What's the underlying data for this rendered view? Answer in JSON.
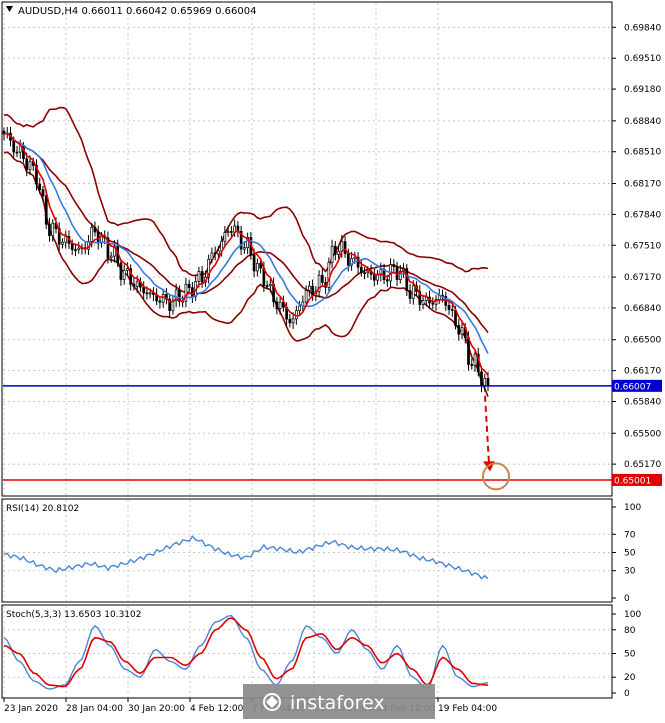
{
  "symbol": "AUDUSD,H4",
  "ohlc": "0.66011 0.66042 0.65969 0.66004",
  "rsi_label": "RSI(14) 20.8102",
  "stoch_label": "Stoch(5,3,3) 13.6503 10.3102",
  "watermark": "instaforex",
  "colors": {
    "background": "#ffffff",
    "grid": "#c8c8c8",
    "candle": "#000000",
    "ma_fast": "#e00000",
    "ma_slow": "#3a7be0",
    "band": "#8b0000",
    "level_blue": "#0000cc",
    "level_red": "#e00000",
    "indicator": "#4a86d8",
    "stoch_signal": "#e00000",
    "target_circle": "#c8864a",
    "watermark_bg": "#8a8a8a"
  },
  "chart_data": [
    {
      "type": "candlestick",
      "title": "AUDUSD,H4",
      "subtitle": "0.66011 0.66042 0.65969 0.66004",
      "x_ticks": [
        "23 Jan 2020",
        "28 Jan 04:00",
        "30 Jan 20:00",
        "4 Feb 12:00",
        "7 Feb 04:00",
        "11 Feb 20:00",
        "14 Feb 12:00",
        "19 Feb 04:00"
      ],
      "y_ticks": [
        0.6517,
        0.655,
        0.6584,
        0.6617,
        0.665,
        0.6684,
        0.6717,
        0.6751,
        0.6784,
        0.6817,
        0.6851,
        0.6884,
        0.6918,
        0.6951,
        0.6984
      ],
      "y_tick_labels": [
        "0.65170",
        "0.65500",
        "0.65840",
        "0.66170",
        "0.66500",
        "0.66840",
        "0.67170",
        "0.67510",
        "0.67840",
        "0.68170",
        "0.68510",
        "0.68840",
        "0.69180",
        "0.69510",
        "0.69840"
      ],
      "ylim": [
        0.6484,
        0.701
      ],
      "levels": [
        {
          "value": 0.66007,
          "label": "0.66007",
          "color": "#0000cc"
        },
        {
          "value": 0.65001,
          "label": "0.65001",
          "color": "#e00000"
        }
      ],
      "annotation": {
        "type": "arrow",
        "from": 0.659,
        "to": 0.6505
      },
      "anchors": [
        0.687,
        0.685,
        0.683,
        0.677,
        0.6755,
        0.6745,
        0.6765,
        0.6745,
        0.672,
        0.6705,
        0.6695,
        0.669,
        0.67,
        0.6715,
        0.6745,
        0.677,
        0.675,
        0.672,
        0.669,
        0.667,
        0.67,
        0.671,
        0.675,
        0.6735,
        0.672,
        0.6718,
        0.6725,
        0.67,
        0.669,
        0.6695,
        0.6665,
        0.6625,
        0.66
      ]
    },
    {
      "type": "line",
      "title": "RSI(14) 20.8102",
      "y_ticks": [
        0,
        30,
        50,
        70,
        100
      ],
      "y_tick_labels": [
        "0",
        "30",
        "50",
        "70",
        "100"
      ],
      "ylim": [
        0,
        100
      ],
      "values": [
        48,
        44,
        36,
        30,
        34,
        38,
        33,
        38,
        44,
        52,
        60,
        66,
        56,
        48,
        44,
        56,
        54,
        50,
        56,
        62,
        56,
        54,
        54,
        52,
        44,
        40,
        34,
        28,
        21
      ]
    },
    {
      "type": "line",
      "title": "Stoch(5,3,3) 13.6503 10.3102",
      "y_ticks": [
        0,
        20,
        50,
        80,
        100
      ],
      "y_tick_labels": [
        "0",
        "20",
        "50",
        "80",
        "100"
      ],
      "ylim": [
        0,
        100
      ],
      "series": [
        {
          "values": [
            70,
            40,
            15,
            5,
            10,
            40,
            85,
            60,
            30,
            20,
            55,
            40,
            30,
            60,
            90,
            98,
            70,
            30,
            10,
            40,
            85,
            70,
            50,
            80,
            55,
            30,
            60,
            20,
            5,
            60,
            20,
            8,
            13
          ]
        },
        {
          "values": [
            60,
            50,
            25,
            10,
            8,
            30,
            70,
            65,
            40,
            25,
            45,
            45,
            35,
            50,
            80,
            95,
            80,
            45,
            18,
            30,
            70,
            75,
            55,
            70,
            60,
            38,
            50,
            30,
            10,
            45,
            30,
            12,
            10
          ]
        }
      ]
    }
  ]
}
